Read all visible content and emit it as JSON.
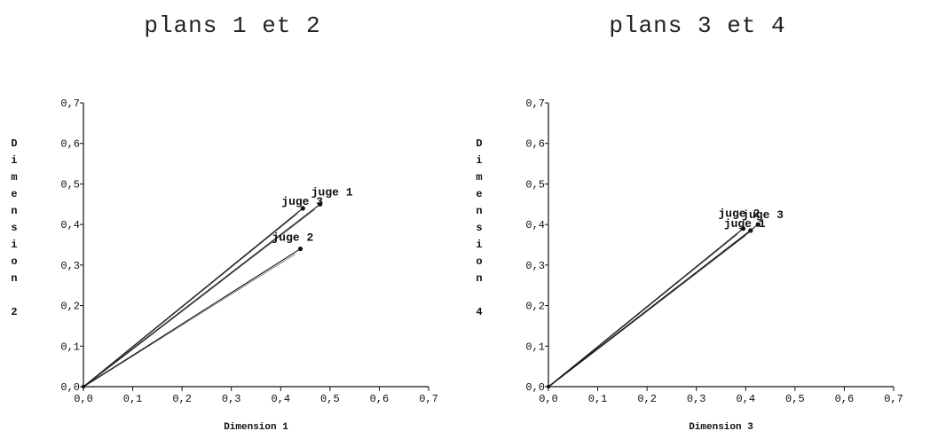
{
  "chart_data": [
    {
      "type": "scatter",
      "title": "plans 1 et 2",
      "xlabel": "Dimension 1",
      "ylabel": "Dimension 2",
      "xlim": [
        0.0,
        0.7
      ],
      "ylim": [
        0.0,
        0.7
      ],
      "xticks": [
        "0,0",
        "0,1",
        "0,2",
        "0,3",
        "0,4",
        "0,5",
        "0,6",
        "0,7"
      ],
      "yticks": [
        "0,0",
        "0,1",
        "0,2",
        "0,3",
        "0,4",
        "0,5",
        "0,6",
        "0,7"
      ],
      "points": [
        {
          "label": "juge 1",
          "x": 0.48,
          "y": 0.45
        },
        {
          "label": "juge 3",
          "x": 0.445,
          "y": 0.44
        },
        {
          "label": "juge 2",
          "x": 0.44,
          "y": 0.34
        }
      ],
      "lines_from_origin": true
    },
    {
      "type": "scatter",
      "title": "plans 3 et 4",
      "xlabel": "Dimension 3",
      "ylabel": "Dimension 4",
      "xlim": [
        0.0,
        0.7
      ],
      "ylim": [
        0.0,
        0.7
      ],
      "xticks": [
        "0,0",
        "0,1",
        "0,2",
        "0,3",
        "0,4",
        "0,5",
        "0,6",
        "0,7"
      ],
      "yticks": [
        "0,0",
        "0,1",
        "0,2",
        "0,3",
        "0,4",
        "0,5",
        "0,6",
        "0,7"
      ],
      "points": [
        {
          "label": "juge 2",
          "x": 0.395,
          "y": 0.39
        },
        {
          "label": "juge 1",
          "x": 0.41,
          "y": 0.385
        },
        {
          "label": "juge 3",
          "x": 0.425,
          "y": 0.4
        }
      ],
      "lines_from_origin": true
    }
  ]
}
